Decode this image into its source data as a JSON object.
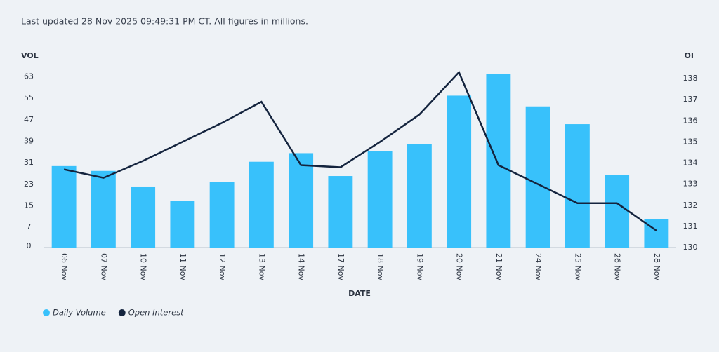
{
  "chart_data": {
    "type": "bar-line",
    "title": "Last updated 28 Nov 2025 09:49:31 PM CT. All figures in millions.",
    "y_label": "VOL",
    "y2_label": "OI",
    "x_label": "DATE",
    "categories": [
      "06 Nov",
      "07 Nov",
      "10 Nov",
      "11 Nov",
      "12 Nov",
      "13 Nov",
      "14 Nov",
      "17 Nov",
      "18 Nov",
      "19 Nov",
      "20 Nov",
      "21 Nov",
      "24 Nov",
      "25 Nov",
      "26 Nov",
      "28 Nov"
    ],
    "series": [
      {
        "name": "Daily Volume",
        "color": "#38c1fb",
        "type": "bar",
        "axis": "y",
        "values": [
          30.3,
          28.5,
          22.7,
          17.4,
          24.3,
          31.9,
          35.1,
          26.6,
          35.9,
          38.5,
          56.5,
          64.6,
          52.5,
          45.9,
          26.9,
          10.6
        ]
      },
      {
        "name": "Open Interest",
        "color": "#14243e",
        "type": "line",
        "axis": "y2",
        "values": [
          133.7,
          133.3,
          134.1,
          135.0,
          135.9,
          136.9,
          133.9,
          133.8,
          135.0,
          136.3,
          138.3,
          133.9,
          133.0,
          132.1,
          132.1,
          130.8
        ]
      }
    ],
    "ylim": [
      0,
      66
    ],
    "yticks": [
      0,
      7,
      15,
      23,
      31,
      39,
      47,
      55,
      63
    ],
    "y2lim": [
      130,
      138.4
    ],
    "y2ticks": [
      130,
      131,
      132,
      133,
      134,
      135,
      136,
      137,
      138
    ]
  }
}
